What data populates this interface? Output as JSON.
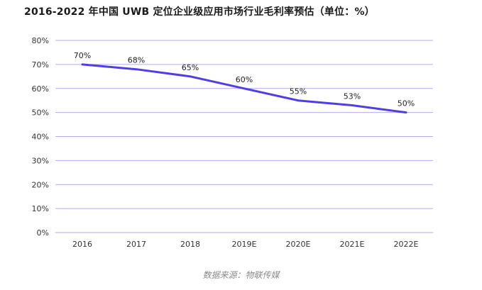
{
  "chart_data": {
    "type": "line",
    "title": "2016-2022 年中国 UWB 定位企业级应用市场行业毛利率预估（单位：%）",
    "categories": [
      "2016",
      "2017",
      "2018",
      "2019E",
      "2020E",
      "2021E",
      "2022E"
    ],
    "series": [
      {
        "values": [
          70,
          68,
          65,
          60,
          55,
          53,
          50
        ],
        "data_labels": [
          "70%",
          "68%",
          "65%",
          "60%",
          "55%",
          "53%",
          "50%"
        ],
        "color": "#4f3ee8"
      }
    ],
    "ylim": [
      0,
      80
    ],
    "yticks": [
      0,
      10,
      20,
      30,
      40,
      50,
      60,
      70,
      80
    ],
    "ytick_labels": [
      "0%",
      "10%",
      "20%",
      "30%",
      "40%",
      "50%",
      "60%",
      "70%",
      "80%"
    ],
    "gridline_color": "#b4aaf0",
    "grid": true,
    "xlabel": "",
    "ylabel": "",
    "source": "数据来源：物联传媒"
  }
}
